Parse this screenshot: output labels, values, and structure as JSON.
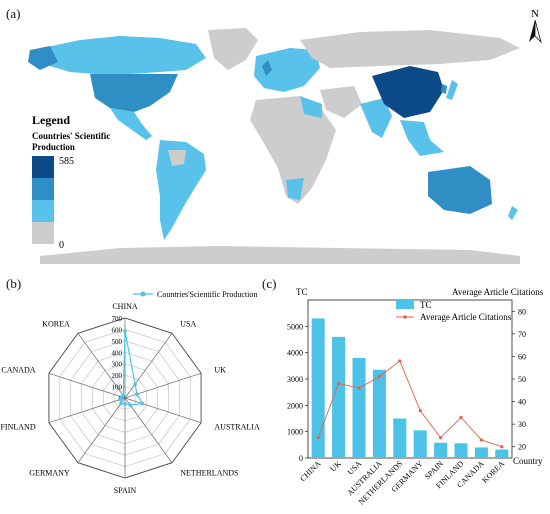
{
  "panels": {
    "a": "(a)",
    "b": "(b)",
    "c": "(c)"
  },
  "map": {
    "north": "N",
    "legend_title": "Legend",
    "legend_subtitle_1": "Countries' Scientific",
    "legend_subtitle_2": "Production",
    "legend_max": "585",
    "legend_min": "0",
    "colors": {
      "level4": "#0b4a86",
      "level3": "#2f8fc5",
      "level2": "#58c2ea",
      "level1": "#cdcdcd",
      "ocean": "#ffffff"
    }
  },
  "chart_data": [
    {
      "type": "radar",
      "legend": "Countries'Scientific Production",
      "categories": [
        "CHINA",
        "USA",
        "UK",
        "AUSTRALIA",
        "NETHERLANDS",
        "SPAIN",
        "GERMANY",
        "FINLAND",
        "CANADA",
        "KOREA"
      ],
      "values": [
        585,
        150,
        110,
        160,
        75,
        50,
        60,
        40,
        30,
        25
      ],
      "rlim": [
        0,
        700
      ],
      "rticks": [
        "0",
        "100",
        "200",
        "300",
        "400",
        "500",
        "600",
        "700"
      ],
      "color": "#4cc3e6"
    },
    {
      "type": "bar+line",
      "xlabel": "Country",
      "ylabel_left": "TC",
      "ylabel_right": "Average Article Citations",
      "categories": [
        "CHINA",
        "UK",
        "USA",
        "AUSTRALIA",
        "NETHERLANDS",
        "GERMANY",
        "SPAIN",
        "FINLAND",
        "CANADA",
        "KOREA"
      ],
      "series": [
        {
          "name": "TC",
          "type": "bar",
          "values": [
            5300,
            4600,
            3800,
            3350,
            1500,
            1050,
            580,
            560,
            400,
            320
          ],
          "color": "#4cc3e6"
        },
        {
          "name": "Average Article Citations",
          "type": "line",
          "values": [
            24,
            48,
            46,
            51,
            58,
            36,
            24,
            33,
            23,
            20
          ],
          "color": "#e8604c"
        }
      ],
      "ylim_left": [
        0,
        6000
      ],
      "yticks_left": [
        "0",
        "1000",
        "2000",
        "3000",
        "4000",
        "5000"
      ],
      "ylim_right": [
        15,
        85
      ],
      "yticks_right": [
        "20",
        "30",
        "40",
        "50",
        "60",
        "70",
        "80"
      ]
    }
  ]
}
